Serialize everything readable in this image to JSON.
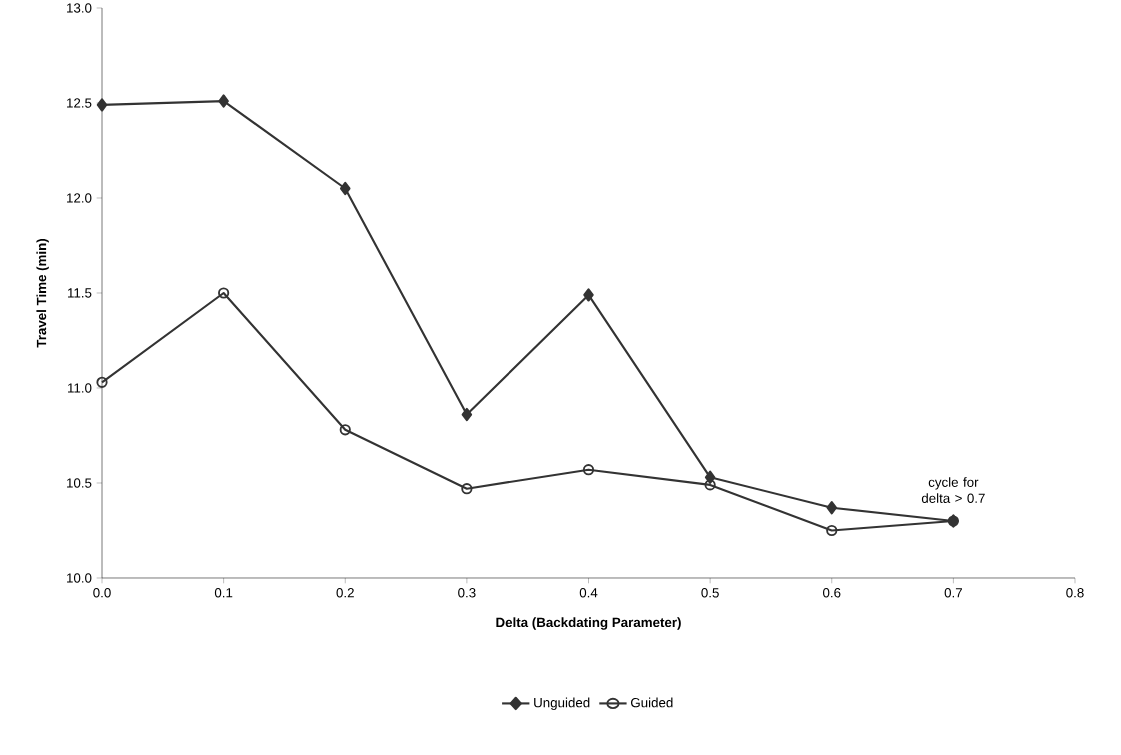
{
  "chart_data": {
    "type": "line",
    "xlabel": "Delta (Backdating Parameter)",
    "ylabel": "Travel Time (min)",
    "x": [
      0.0,
      0.1,
      0.2,
      0.3,
      0.4,
      0.5,
      0.6,
      0.7
    ],
    "series": [
      {
        "name": "Unguided",
        "color": "#333333",
        "marker": "diamond",
        "values": [
          12.49,
          12.51,
          12.05,
          10.86,
          11.49,
          10.53,
          10.37,
          10.3
        ]
      },
      {
        "name": "Guided",
        "color": "#333333",
        "marker": "circle",
        "values": [
          11.03,
          11.5,
          10.78,
          10.47,
          10.57,
          10.49,
          10.25,
          10.3
        ]
      }
    ],
    "xlim": [
      0,
      0.8
    ],
    "ylim": [
      10,
      13
    ],
    "xticks": [
      {
        "value": 0,
        "label": "0.0"
      },
      {
        "value": 0.1,
        "label": "0.1"
      },
      {
        "value": 0.2,
        "label": "0.2"
      },
      {
        "value": 0.3,
        "label": "0.3"
      },
      {
        "value": 0.4,
        "label": "0.4"
      },
      {
        "value": 0.5,
        "label": "0.5"
      },
      {
        "value": 0.6,
        "label": "0.6"
      },
      {
        "value": 0.7,
        "label": "0.7"
      },
      {
        "value": 0.8,
        "label": "0.8"
      }
    ],
    "yticks": [
      {
        "value": 10,
        "label": "10.0"
      },
      {
        "value": 10.5,
        "label": "10.5"
      },
      {
        "value": 11,
        "label": "11.0"
      },
      {
        "value": 11.5,
        "label": "11.5"
      },
      {
        "value": 12,
        "label": "12.0"
      },
      {
        "value": 12.5,
        "label": "12.5"
      },
      {
        "value": 13,
        "label": "13.0"
      }
    ],
    "annotations": [
      {
        "text": "cycle for delta > 0.7",
        "x": 0.7,
        "y": 10.3
      }
    ],
    "legend": "bottom",
    "line_style": "solid",
    "grid": false
  }
}
